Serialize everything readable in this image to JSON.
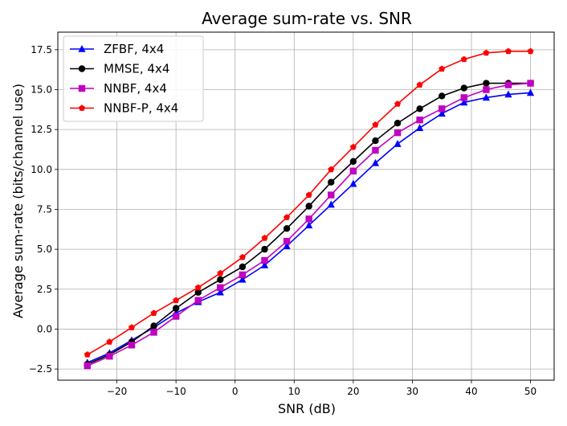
{
  "chart_data": {
    "type": "line",
    "title": "Average sum-rate vs. SNR",
    "xlabel": "SNR (dB)",
    "ylabel": "Average sum-rate (bits/channel use)",
    "xlim": [
      -30,
      54
    ],
    "ylim": [
      -3.2,
      18.6
    ],
    "xticks": [
      -20,
      -10,
      0,
      10,
      20,
      30,
      40,
      50
    ],
    "yticks": [
      -2.5,
      0.0,
      2.5,
      5.0,
      7.5,
      10.0,
      12.5,
      15.0,
      17.5
    ],
    "xtick_labels": [
      "−20",
      "−10",
      "0",
      "10",
      "20",
      "30",
      "40",
      "50"
    ],
    "ytick_labels": [
      "−2.5",
      "0.0",
      "2.5",
      "5.0",
      "7.5",
      "10.0",
      "12.5",
      "15.0",
      "17.5"
    ],
    "grid": true,
    "legend_position": "top-left",
    "x": [
      -25,
      -21.25,
      -17.5,
      -13.75,
      -10,
      -6.25,
      -2.5,
      1.25,
      5,
      8.75,
      12.5,
      16.25,
      20,
      23.75,
      27.5,
      31.25,
      35,
      38.75,
      42.5,
      46.25,
      50
    ],
    "series": [
      {
        "name": "ZFBF, 4x4",
        "color": "#0000ff",
        "marker": "triangle",
        "values": [
          -2.1,
          -1.5,
          -0.7,
          0.1,
          1.0,
          1.7,
          2.3,
          3.1,
          4.0,
          5.2,
          6.5,
          7.8,
          9.1,
          10.4,
          11.6,
          12.6,
          13.5,
          14.2,
          14.5,
          14.7,
          14.8
        ]
      },
      {
        "name": "MMSE, 4x4",
        "color": "#000000",
        "marker": "circle",
        "values": [
          -2.2,
          -1.6,
          -0.8,
          0.2,
          1.3,
          2.3,
          3.1,
          3.9,
          5.0,
          6.3,
          7.7,
          9.2,
          10.5,
          11.8,
          12.9,
          13.8,
          14.6,
          15.1,
          15.4,
          15.4,
          15.4
        ]
      },
      {
        "name": "NNBF, 4x4",
        "color": "#c000c0",
        "marker": "square",
        "values": [
          -2.3,
          -1.7,
          -1.0,
          -0.2,
          0.8,
          1.8,
          2.6,
          3.4,
          4.3,
          5.5,
          6.9,
          8.4,
          9.9,
          11.2,
          12.3,
          13.1,
          13.8,
          14.5,
          15.0,
          15.3,
          15.4
        ]
      },
      {
        "name": "NNBF-P, 4x4",
        "color": "#ff0000",
        "marker": "pentagon",
        "values": [
          -1.6,
          -0.8,
          0.1,
          1.0,
          1.8,
          2.6,
          3.5,
          4.5,
          5.7,
          7.0,
          8.4,
          10.0,
          11.4,
          12.8,
          14.1,
          15.3,
          16.3,
          16.9,
          17.3,
          17.4,
          17.4
        ]
      }
    ]
  }
}
